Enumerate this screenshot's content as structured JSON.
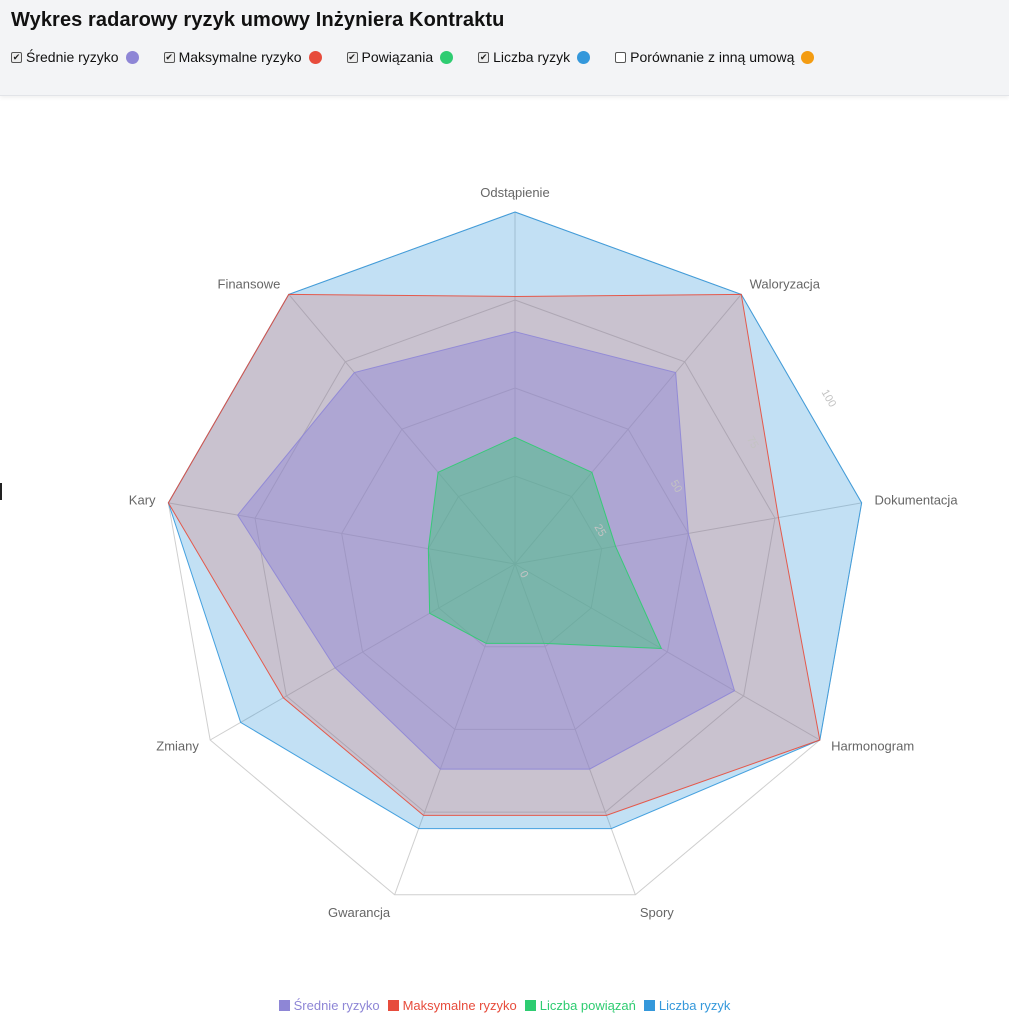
{
  "header": {
    "title": "Wykres radarowy ryzyk umowy Inżyniera Kontraktu",
    "toggles": [
      {
        "label": "Średnie ryzyko",
        "checked": true,
        "color": "#8e86d6"
      },
      {
        "label": "Maksymalne ryzyko",
        "checked": true,
        "color": "#e74c3c"
      },
      {
        "label": "Powiązania",
        "checked": true,
        "color": "#2ecc71"
      },
      {
        "label": "Liczba ryzyk",
        "checked": true,
        "color": "#3498db"
      },
      {
        "label": "Porównanie z inną umową",
        "checked": false,
        "color": "#f39c12"
      }
    ]
  },
  "chart_data": {
    "type": "radar",
    "title": "",
    "categories": [
      "Odstąpienie",
      "Waloryzacja",
      "Dokumentacja",
      "Harmonogram",
      "Spory",
      "Gwarancja",
      "Zmiany",
      "Kary",
      "Finansowe"
    ],
    "range": [
      0,
      100
    ],
    "tick_values": [
      0,
      25,
      50,
      75,
      100
    ],
    "tick_labels": [
      "0",
      "25",
      "50",
      "75",
      "100"
    ],
    "grid": true,
    "legend_position": "bottom",
    "series": [
      {
        "name": "Liczba ryzyk",
        "color": "#3498db",
        "fill_opacity": 0.3,
        "values": [
          100,
          100,
          100,
          100,
          80,
          80,
          90,
          100,
          100
        ]
      },
      {
        "name": "Maksymalne ryzyko",
        "color": "#e74c3c",
        "fill_opacity": 0.2,
        "values": [
          76,
          100,
          76,
          100,
          76,
          76,
          76,
          100,
          100
        ]
      },
      {
        "name": "Średnie ryzyko",
        "color": "#8e86d6",
        "fill_opacity": 0.45,
        "values": [
          66,
          71,
          50,
          72,
          62,
          62,
          59,
          80,
          71
        ]
      },
      {
        "name": "Liczba powiązań",
        "color": "#2ecc71",
        "fill_opacity": 0.4,
        "values": [
          36,
          34,
          29,
          48,
          24,
          24,
          28,
          25,
          34
        ]
      }
    ]
  }
}
